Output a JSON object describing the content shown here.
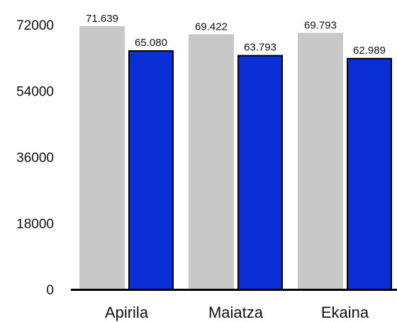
{
  "chart_data": {
    "type": "bar",
    "categories": [
      "Apirila",
      "Maiatza",
      "Ekaina"
    ],
    "series": [
      {
        "values": [
          71639,
          69422,
          69793
        ],
        "labels": [
          "71.639",
          "69.422",
          "69.793"
        ],
        "color": "#c8c8c8"
      },
      {
        "values": [
          65080,
          63793,
          62989
        ],
        "labels": [
          "65.080",
          "63.793",
          "62.989"
        ],
        "color": "#0a2fd6"
      }
    ],
    "y_ticks": [
      0,
      18000,
      36000,
      54000,
      72000
    ],
    "y_tick_labels": [
      "0",
      "18000",
      "36000",
      "54000",
      "72000"
    ],
    "ylim": [
      0,
      72000
    ],
    "grid": false,
    "legend": "none",
    "title": "",
    "xlabel": "",
    "ylabel": ""
  }
}
